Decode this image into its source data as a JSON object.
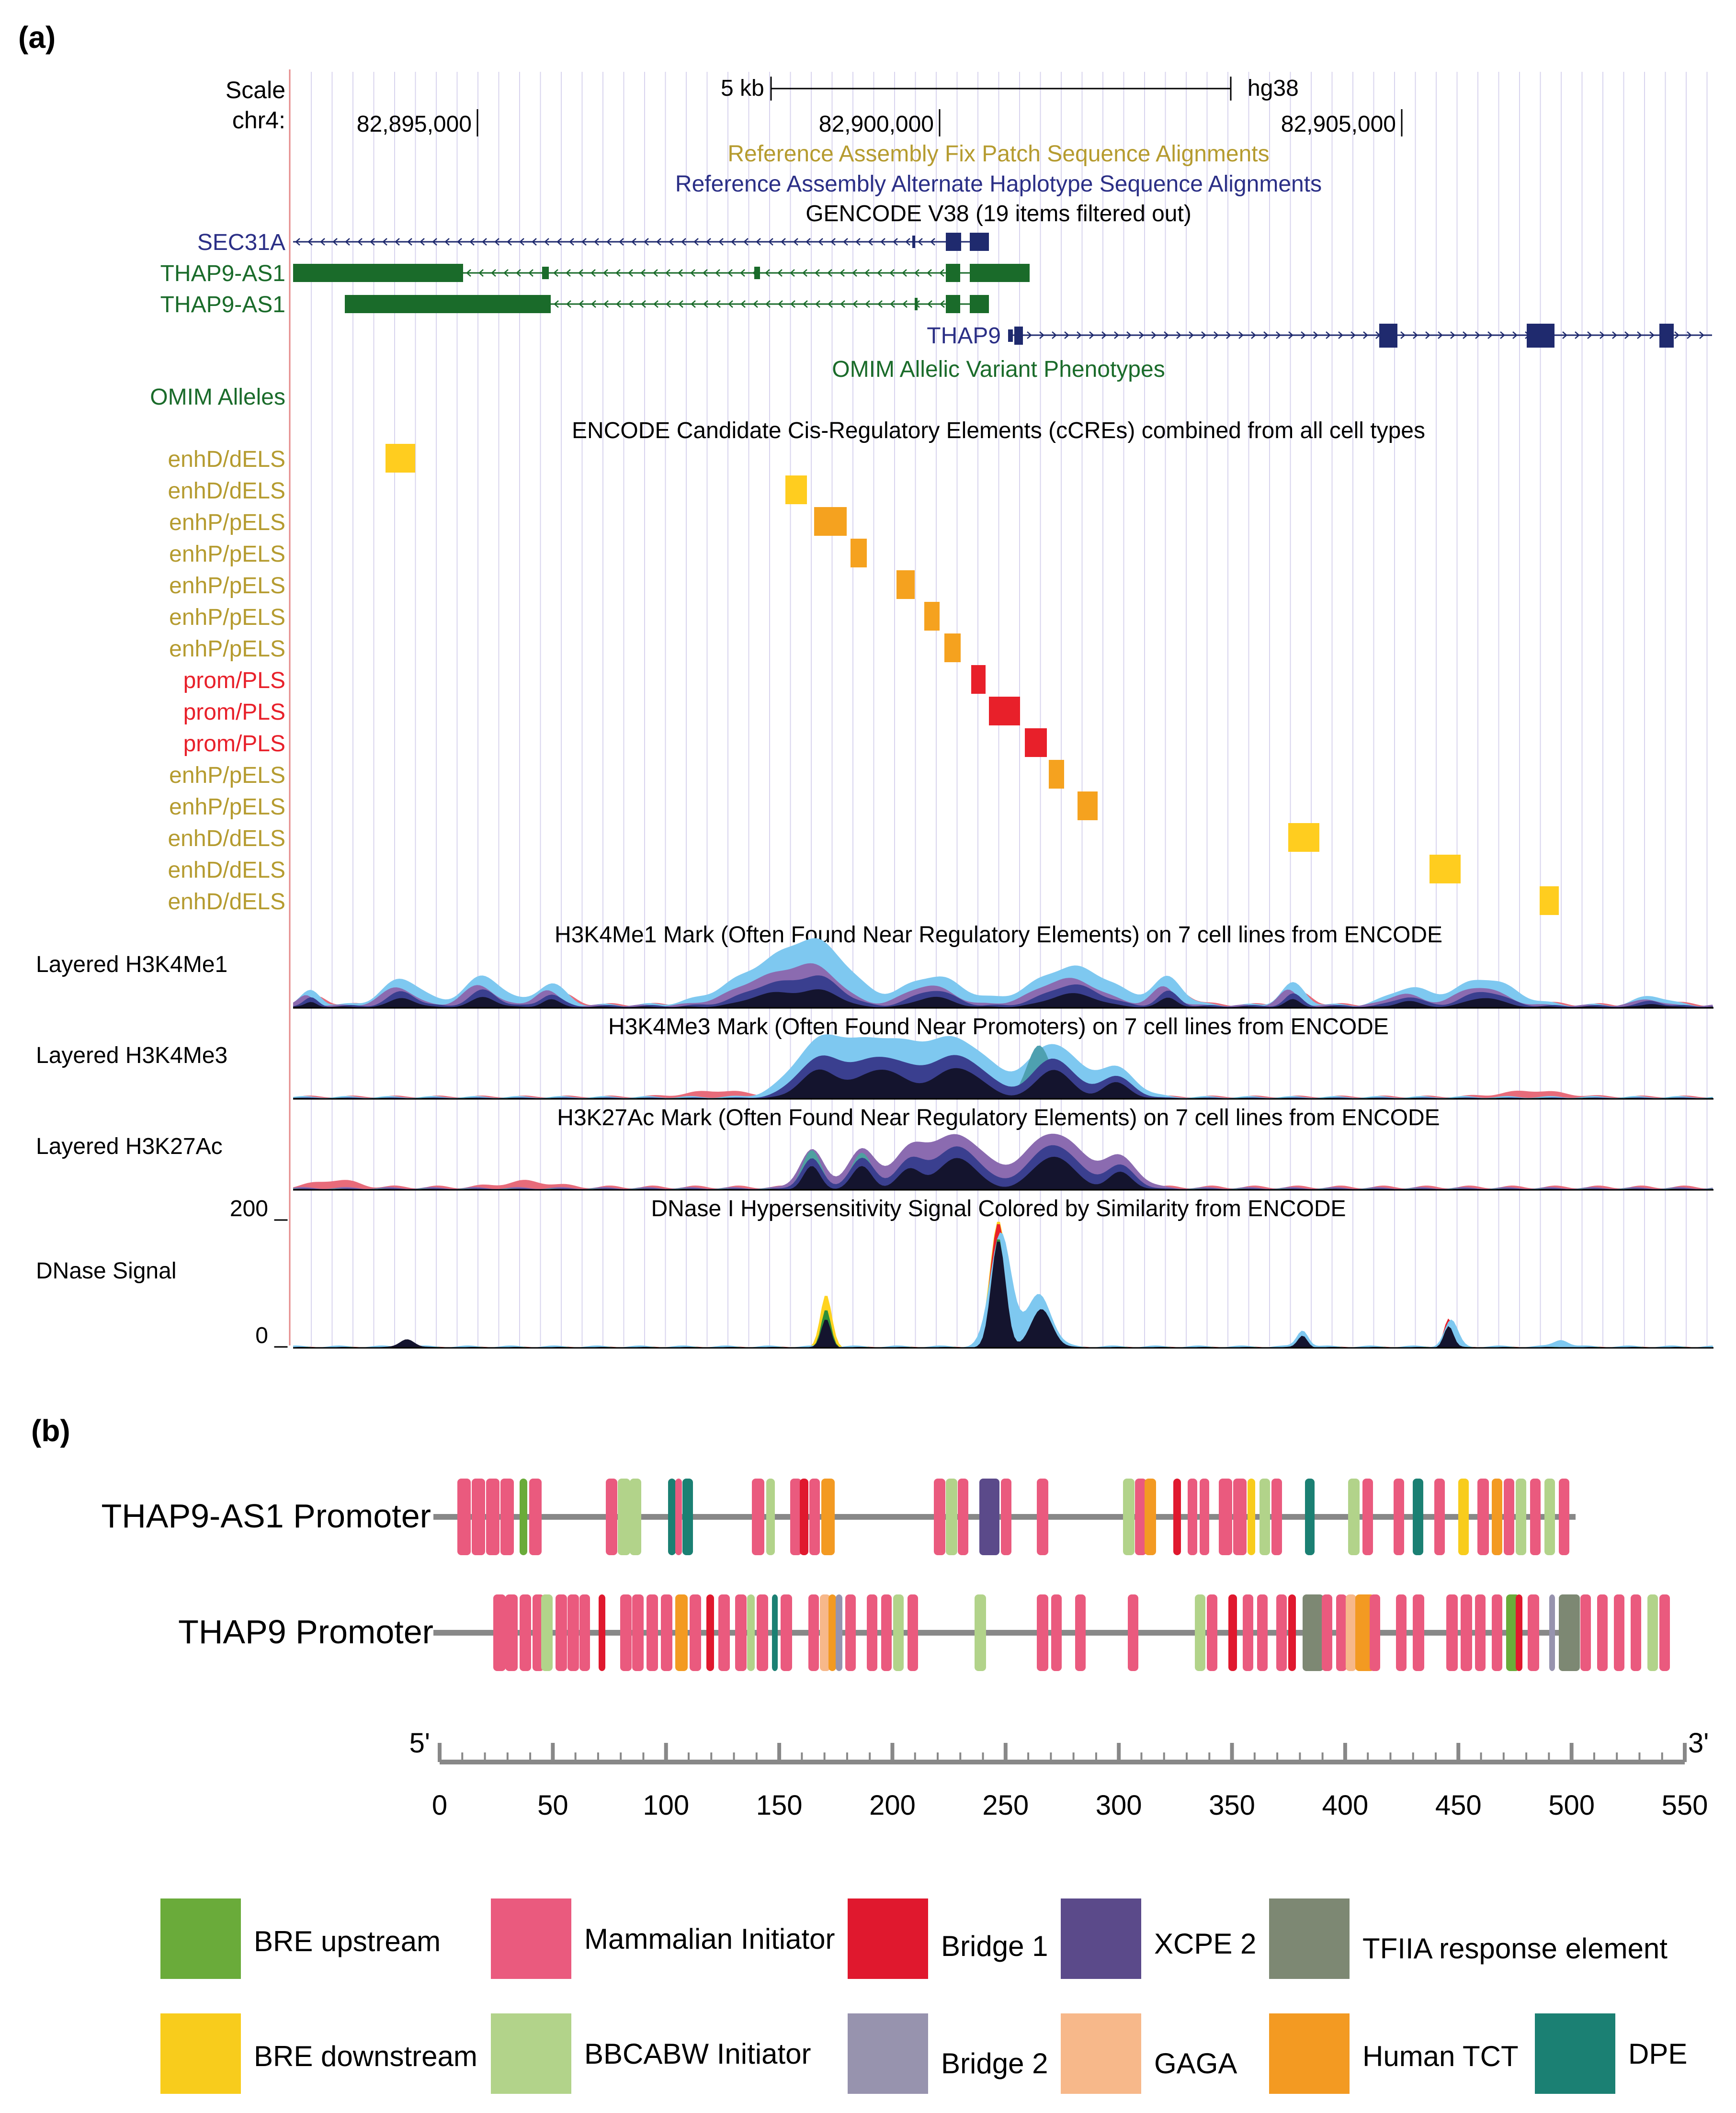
{
  "panel_a": {
    "label": "(a)",
    "scale_label": "Scale",
    "scale_bar": "5 kb",
    "assembly": "hg38",
    "chrom_label": "chr4:",
    "coords": [
      "82,895,000",
      "82,900,000",
      "82,905,000"
    ],
    "track_titles": {
      "fix_patch": "Reference Assembly Fix Patch Sequence Alignments",
      "alt_haplotype": "Reference Assembly Alternate Haplotype Sequence Alignments",
      "gencode": "GENCODE V38 (19 items filtered out)",
      "omim_pheno": "OMIM Allelic Variant Phenotypes",
      "encode_ccre": "ENCODE Candidate Cis-Regulatory Elements (cCREs) combined from all cell types",
      "h3k4me1": "H3K4Me1 Mark (Often Found Near Regulatory Elements) on 7 cell lines from ENCODE",
      "h3k4me3": "H3K4Me3 Mark (Often Found Near Promoters) on 7 cell lines from ENCODE",
      "h3k27ac": "H3K27Ac Mark (Often Found Near Regulatory Elements) on 7 cell lines from ENCODE",
      "dnase": "DNase I Hypersensitivity Signal Colored by Similarity from ENCODE"
    },
    "genes": [
      "SEC31A",
      "THAP9-AS1",
      "THAP9-AS1",
      "THAP9"
    ],
    "omim_alleles": "OMIM Alleles",
    "ccre_labels": [
      "enhD/dELS",
      "enhD/dELS",
      "enhP/pELS",
      "enhP/pELS",
      "enhP/pELS",
      "enhP/pELS",
      "enhP/pELS",
      "prom/PLS",
      "prom/PLS",
      "prom/PLS",
      "enhP/pELS",
      "enhP/pELS",
      "enhD/dELS",
      "enhD/dELS",
      "enhD/dELS"
    ],
    "signal_tracks": [
      "Layered H3K4Me1",
      "Layered H3K4Me3",
      "Layered H3K27Ac",
      "DNase Signal"
    ],
    "dnase_max": "200 _",
    "dnase_min": "0 _",
    "colors": {
      "enhD": "#ffcd1f",
      "enhP": "#f5a21f",
      "prom": "#e8202a",
      "gencode_blue": "#1f2a6e",
      "gene_green": "#1a6b2a",
      "fix_patch_text": "#b59b2f"
    }
  },
  "panel_b": {
    "label": "(b)",
    "promoters": [
      "THAP9-AS1 Promoter",
      "THAP9 Promoter"
    ],
    "axis_ends": [
      "5'",
      "3'"
    ],
    "axis_ticks": [
      "0",
      "50",
      "100",
      "150",
      "200",
      "250",
      "300",
      "350",
      "400",
      "450",
      "500",
      "550"
    ],
    "legend": [
      {
        "label": "BRE upstream",
        "color": "#6aab3a"
      },
      {
        "label": "Mammalian Initiator",
        "color": "#ea5a7e"
      },
      {
        "label": "Bridge 1",
        "color": "#e0182e"
      },
      {
        "label": "XCPE 2",
        "color": "#5b4a8a"
      },
      {
        "label": "TFIIA response element",
        "color": "#7d8873"
      },
      {
        "label": "BRE downstream",
        "color": "#f8cc1c"
      },
      {
        "label": "BBCABW Initiator",
        "color": "#b2d38a"
      },
      {
        "label": "Bridge 2",
        "color": "#9793ae"
      },
      {
        "label": "GAGA",
        "color": "#f7b88a"
      },
      {
        "label": "Human TCT",
        "color": "#f39a22"
      },
      {
        "label": "DPE",
        "color": "#1b8073"
      }
    ]
  }
}
